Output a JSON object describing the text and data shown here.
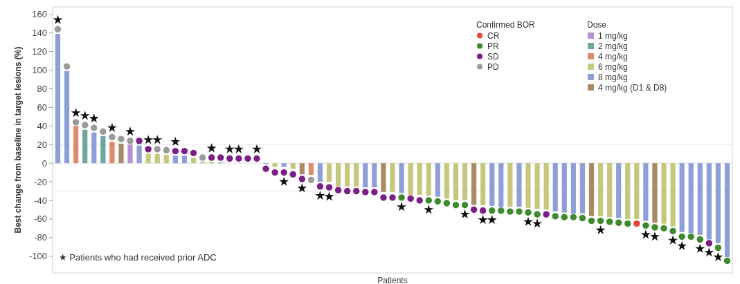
{
  "chart_data": {
    "type": "bar",
    "annotations": [
      "★ Patients who had received prior ADC"
    ],
    "xlabel": "Patients",
    "ylabel": "Best change from baseline in target lesions (%)",
    "legend_title": [
      "Confirmed BOR",
      "Dose"
    ],
    "legend": "top right",
    "categories": [
      null,
      null,
      null,
      null,
      null,
      null,
      null,
      null,
      null,
      null,
      null,
      null,
      null,
      null,
      null,
      null,
      null,
      null,
      null,
      null,
      null,
      null,
      null,
      null,
      null,
      null,
      null,
      null,
      null,
      null,
      null,
      null,
      null,
      null,
      null,
      null,
      null,
      null,
      null,
      null,
      null,
      null,
      null,
      null,
      null,
      null,
      null,
      null,
      null,
      null,
      null,
      null,
      null,
      null,
      null,
      null,
      null,
      null,
      null,
      null,
      null,
      null,
      null,
      null,
      null,
      null,
      null,
      null,
      null,
      null,
      null,
      null,
      null,
      null,
      null
    ],
    "ylim": [
      -118,
      168
    ],
    "yticks": [
      -100,
      -80,
      -60,
      -40,
      -20,
      0,
      20,
      40,
      60,
      80,
      100,
      120,
      140,
      160
    ],
    "ref_lines": [
      {
        "axis": "y",
        "value": 20,
        "color": "#e8e8e8"
      },
      {
        "axis": "y",
        "value": -30,
        "color": "#e8e8e8"
      }
    ],
    "series": [
      {
        "name": "1 mg/kg",
        "color": "#b491d6",
        "values": [
          null,
          null,
          null,
          null,
          null,
          null,
          null,
          null,
          20,
          null,
          null,
          null,
          null,
          null,
          null,
          null,
          null,
          null,
          null,
          null,
          null,
          null,
          null,
          null,
          null,
          null,
          null,
          null,
          null,
          null,
          null,
          null,
          null,
          null,
          null,
          null,
          null,
          null,
          null,
          null,
          null,
          null,
          null,
          null,
          null,
          null,
          null,
          null,
          null,
          null,
          null,
          null,
          null,
          null,
          null,
          null,
          null,
          null,
          null,
          null,
          null,
          null,
          null,
          null,
          null,
          null,
          null,
          null,
          null,
          null,
          null,
          null,
          null,
          null,
          null
        ]
      },
      {
        "name": "2 mg/kg",
        "color": "#6fa6a0",
        "values": [
          null,
          null,
          null,
          36,
          null,
          29,
          null,
          null,
          null,
          null,
          null,
          null,
          null,
          null,
          null,
          null,
          null,
          null,
          null,
          null,
          null,
          null,
          null,
          null,
          null,
          null,
          null,
          null,
          null,
          null,
          null,
          null,
          null,
          null,
          null,
          null,
          null,
          null,
          null,
          null,
          null,
          null,
          null,
          null,
          null,
          null,
          null,
          null,
          null,
          null,
          null,
          null,
          null,
          null,
          null,
          null,
          null,
          null,
          null,
          null,
          null,
          null,
          null,
          null,
          null,
          null,
          null,
          null,
          null,
          null,
          null,
          null,
          null,
          null,
          null
        ]
      },
      {
        "name": "4 mg/kg",
        "color": "#de8a6e",
        "values": [
          null,
          null,
          40,
          null,
          null,
          null,
          23,
          null,
          null,
          null,
          null,
          null,
          null,
          null,
          null,
          null,
          null,
          null,
          null,
          null,
          null,
          null,
          null,
          null,
          null,
          null,
          null,
          null,
          -12.5,
          null,
          null,
          null,
          null,
          null,
          null,
          null,
          null,
          null,
          null,
          null,
          null,
          null,
          null,
          null,
          null,
          null,
          null,
          null,
          null,
          null,
          null,
          null,
          null,
          null,
          null,
          null,
          null,
          null,
          null,
          null,
          null,
          null,
          null,
          null,
          null,
          null,
          null,
          null,
          null,
          null,
          null,
          null,
          null,
          null,
          null
        ]
      },
      {
        "name": "6 mg/kg",
        "color": "#c4c87c",
        "values": [
          null,
          null,
          null,
          null,
          null,
          null,
          null,
          null,
          null,
          null,
          10,
          10,
          9,
          null,
          null,
          6,
          1.5,
          1.5,
          null,
          null,
          null,
          null,
          null,
          null,
          -4,
          null,
          -6,
          null,
          null,
          null,
          -20,
          -25,
          -25,
          -25,
          null,
          null,
          null,
          -31,
          null,
          -34,
          -34,
          -35,
          null,
          -38,
          -40,
          -40,
          null,
          -45,
          null,
          null,
          -47,
          null,
          -48,
          -49,
          -50,
          null,
          null,
          null,
          null,
          null,
          -57,
          -58,
          null,
          -60,
          -60,
          null,
          null,
          -65,
          -68,
          null,
          null,
          null,
          null,
          null,
          null
        ]
      },
      {
        "name": "8 mg/kg",
        "color": "#8d9fd6",
        "values": [
          139,
          99,
          null,
          null,
          33,
          null,
          null,
          null,
          null,
          19,
          null,
          null,
          null,
          8,
          8,
          null,
          null,
          null,
          1,
          null,
          null,
          null,
          null,
          -1,
          null,
          -4,
          null,
          null,
          null,
          -20,
          null,
          null,
          null,
          null,
          -26,
          -26,
          null,
          null,
          -32,
          null,
          null,
          null,
          -36,
          null,
          null,
          null,
          null,
          null,
          -46,
          -47,
          null,
          -47,
          null,
          null,
          null,
          -52,
          -53,
          -54,
          -54,
          null,
          null,
          null,
          -59,
          null,
          null,
          -62,
          null,
          null,
          null,
          -74,
          -75,
          -77,
          -82,
          -86,
          -101
        ]
      },
      {
        "name": "4 mg/kg (D1 & D8)",
        "color": "#a88b66",
        "values": [
          null,
          null,
          null,
          null,
          null,
          null,
          null,
          21,
          null,
          null,
          null,
          null,
          null,
          null,
          null,
          null,
          null,
          null,
          null,
          null,
          null,
          null,
          null,
          null,
          null,
          null,
          null,
          -12,
          null,
          null,
          null,
          null,
          null,
          null,
          null,
          null,
          -31,
          null,
          null,
          null,
          null,
          null,
          null,
          null,
          null,
          null,
          -45,
          null,
          null,
          null,
          null,
          null,
          null,
          null,
          null,
          null,
          null,
          null,
          null,
          -57,
          null,
          null,
          null,
          null,
          null,
          null,
          -64,
          null,
          null,
          null,
          null,
          null,
          null,
          null,
          null
        ]
      },
      {
        "type": "scatter",
        "marker": "circle",
        "name": "CR",
        "color": "#e2473a",
        "values": [
          null,
          null,
          null,
          null,
          null,
          null,
          null,
          null,
          null,
          null,
          null,
          null,
          null,
          null,
          null,
          null,
          null,
          null,
          null,
          null,
          null,
          null,
          null,
          null,
          null,
          null,
          null,
          null,
          null,
          null,
          null,
          null,
          null,
          null,
          null,
          null,
          null,
          null,
          null,
          null,
          null,
          null,
          null,
          null,
          null,
          null,
          null,
          null,
          null,
          null,
          null,
          null,
          null,
          null,
          null,
          null,
          null,
          null,
          null,
          null,
          null,
          null,
          null,
          null,
          -65,
          null,
          null,
          null,
          null,
          null,
          null,
          null,
          null,
          null,
          null
        ]
      },
      {
        "type": "scatter",
        "marker": "circle",
        "name": "PR",
        "color": "#3f8a2e",
        "values": [
          null,
          null,
          null,
          null,
          null,
          null,
          null,
          null,
          null,
          null,
          null,
          null,
          null,
          null,
          null,
          null,
          null,
          null,
          null,
          null,
          null,
          null,
          null,
          null,
          null,
          null,
          null,
          null,
          null,
          null,
          null,
          null,
          null,
          null,
          null,
          null,
          null,
          null,
          -37,
          null,
          null,
          -40,
          -41,
          -43,
          -45,
          -45,
          null,
          null,
          -51,
          -51,
          -52,
          -52,
          -53,
          -55,
          null,
          -57,
          -58,
          -58,
          -59,
          -62,
          -62,
          -63,
          -64,
          -65,
          null,
          -67,
          -69,
          -70,
          -73,
          -79,
          -79,
          -82,
          null,
          -91,
          -105
        ]
      },
      {
        "type": "scatter",
        "marker": "circle",
        "name": "SD",
        "color": "#7b1f87",
        "values": [
          null,
          null,
          null,
          null,
          null,
          null,
          null,
          null,
          null,
          24,
          15,
          null,
          null,
          13,
          13,
          11,
          null,
          6,
          6,
          5,
          5,
          5,
          5,
          -6,
          -10,
          -10,
          -12,
          -17,
          null,
          -25,
          -26,
          -29,
          -30,
          -30,
          -31,
          -31,
          -37,
          -37,
          null,
          -38,
          -40,
          null,
          null,
          null,
          null,
          null,
          -50,
          -51,
          null,
          null,
          null,
          null,
          null,
          null,
          -55,
          null,
          null,
          null,
          null,
          null,
          null,
          null,
          null,
          null,
          null,
          null,
          null,
          null,
          null,
          null,
          null,
          null,
          -86,
          null,
          null
        ]
      },
      {
        "type": "scatter",
        "marker": "circle",
        "name": "PD",
        "color": "#9a9a9a",
        "values": [
          144,
          104,
          44,
          41,
          38,
          34,
          28,
          26,
          24,
          null,
          null,
          15,
          14,
          null,
          null,
          null,
          6,
          null,
          null,
          null,
          null,
          null,
          null,
          null,
          null,
          null,
          null,
          null,
          -18,
          null,
          null,
          null,
          null,
          null,
          null,
          null,
          null,
          null,
          null,
          null,
          null,
          null,
          null,
          null,
          null,
          null,
          null,
          null,
          null,
          null,
          null,
          null,
          null,
          null,
          null,
          null,
          null,
          null,
          null,
          null,
          null,
          null,
          null,
          null,
          null,
          null,
          null,
          null,
          null,
          null,
          null,
          null,
          null,
          null,
          null
        ]
      },
      {
        "type": "scatter",
        "marker": "star",
        "color": "#111111",
        "values": [
          154,
          null,
          54,
          51,
          48,
          null,
          38,
          null,
          34,
          null,
          25,
          25,
          null,
          23,
          null,
          null,
          null,
          16,
          null,
          15,
          15,
          null,
          15,
          null,
          null,
          -20,
          null,
          -27,
          null,
          -35,
          -36,
          null,
          null,
          null,
          null,
          null,
          null,
          null,
          -47,
          null,
          null,
          -50,
          null,
          null,
          null,
          -55,
          null,
          -61,
          -61,
          null,
          null,
          null,
          -63,
          -65,
          null,
          null,
          null,
          null,
          null,
          null,
          -72,
          null,
          null,
          null,
          null,
          -77,
          -79,
          null,
          -83,
          -89,
          null,
          -92,
          -96,
          -101,
          null
        ]
      }
    ]
  }
}
